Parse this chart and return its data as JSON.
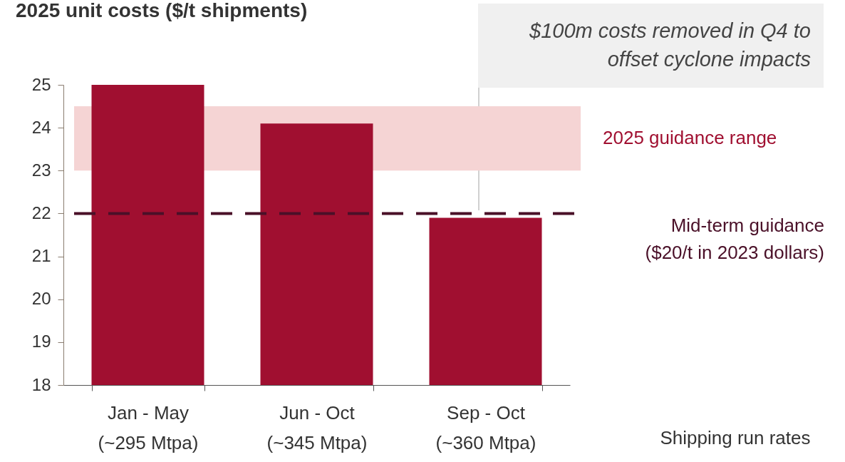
{
  "chart_data": {
    "type": "bar",
    "title": "2025 unit costs ($/t shipments)",
    "xlabel": "Shipping run rates",
    "categories": [
      "Jan - May\n(~295 Mtpa)",
      "Jun - Oct\n(~345 Mtpa)",
      "Sep - Oct\n(~360 Mtpa)"
    ],
    "values": [
      25.0,
      24.1,
      21.9
    ],
    "color": "#a00f30",
    "ylim": [
      18,
      25
    ],
    "yticks": [
      18,
      19,
      20,
      21,
      22,
      23,
      24,
      25
    ],
    "grid": false,
    "bands": [
      {
        "axis": "y",
        "from": 23,
        "to": 24.5,
        "label": "2025 guidance range",
        "color": "#f5d4d4"
      }
    ],
    "ref_lines": [
      {
        "axis": "y",
        "value": 22,
        "label": "Mid-term guidance\n($20/t in 2023 dollars)",
        "color": "#4a1028",
        "line_style": "dashed"
      }
    ],
    "annotations": [
      "$100m costs removed in Q4 to offset cyclone impacts"
    ]
  }
}
